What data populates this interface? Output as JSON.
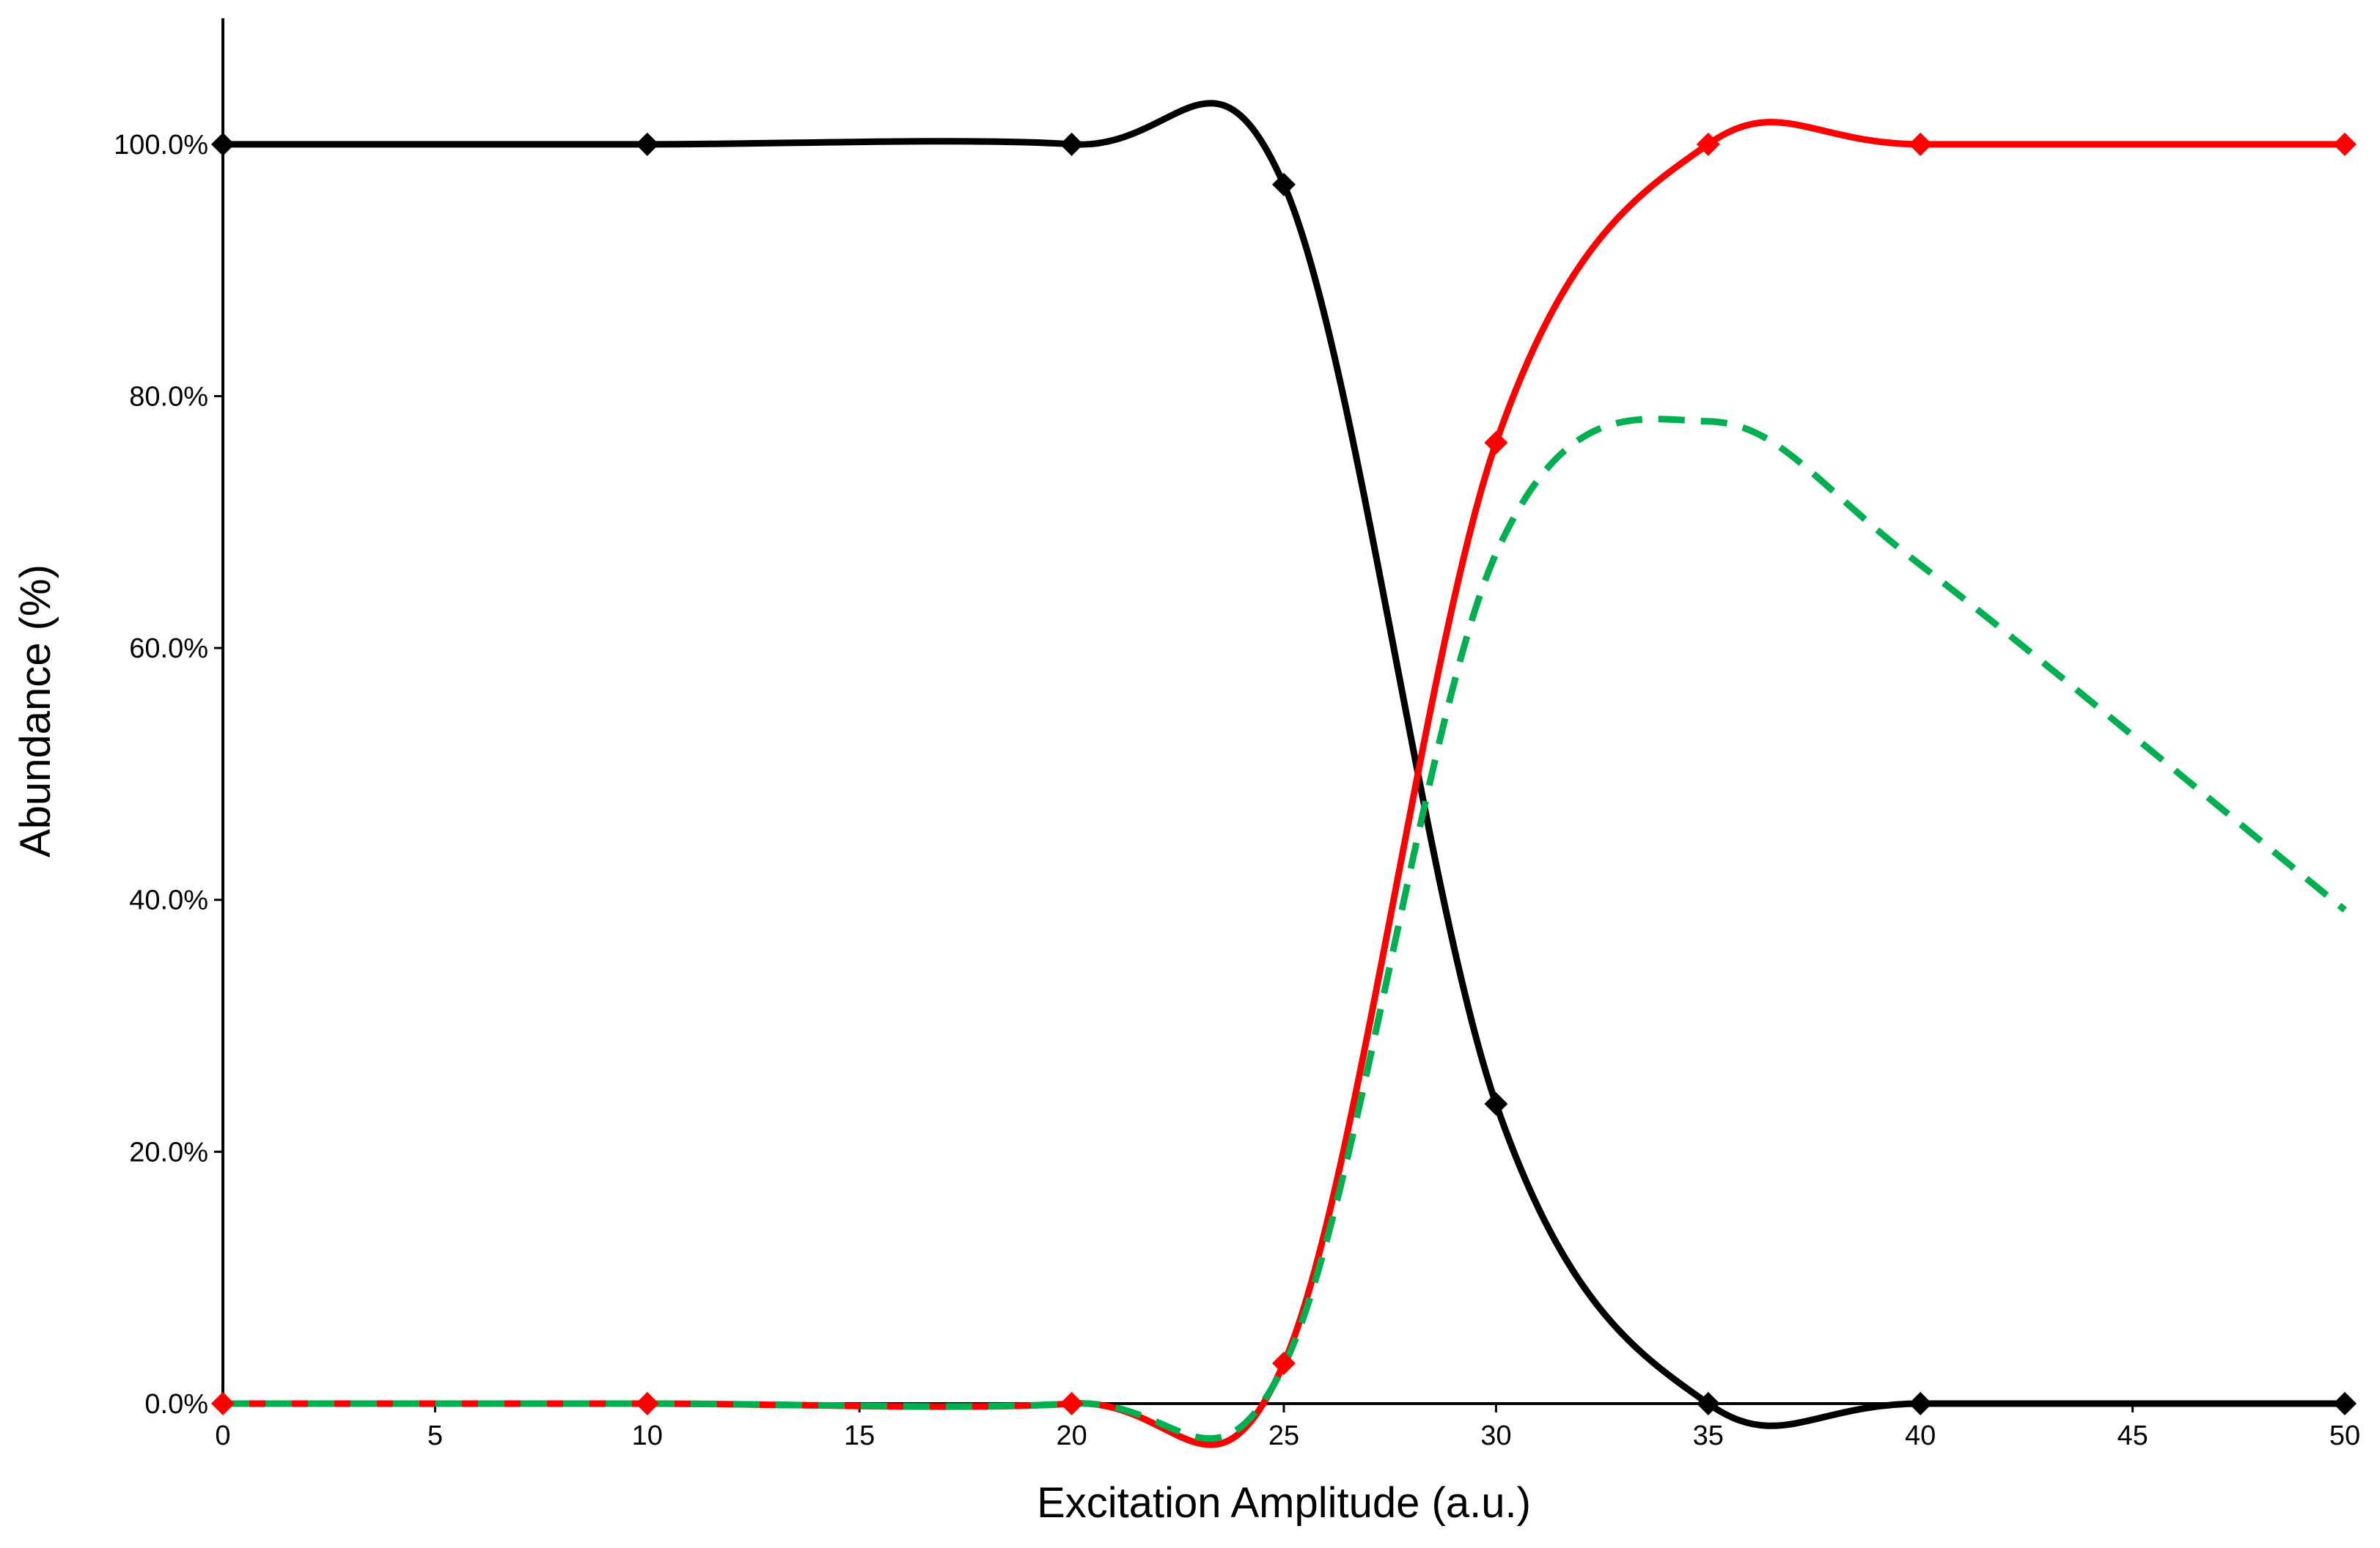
{
  "chart_data": {
    "type": "line",
    "x_label": "Excitation Amplitude (a.u.)",
    "y_label": "Abundance (%)",
    "x": [
      0,
      10,
      20,
      25,
      30,
      35,
      40,
      50
    ],
    "series": [
      {
        "name": "Black",
        "color": "#000000",
        "values": [
          100,
          100,
          100,
          96.8,
          23.8,
          0,
          0,
          0
        ],
        "markers": true,
        "dashed": false
      },
      {
        "name": "Red",
        "color": "#ff0000",
        "values": [
          0,
          0,
          0,
          3.2,
          76.3,
          100,
          100,
          100
        ],
        "markers": true,
        "dashed": false
      },
      {
        "name": "Green",
        "color": "#00b050",
        "values": [
          0,
          0,
          0,
          3,
          67.5,
          78,
          66.6,
          39.2
        ],
        "markers": false,
        "dashed": true
      }
    ],
    "xlim": [
      0,
      50
    ],
    "xticks": [
      0,
      5,
      10,
      15,
      20,
      25,
      30,
      35,
      40,
      45,
      50
    ],
    "ylim": [
      0,
      110
    ],
    "yticks": [
      {
        "value": 0,
        "label": "0.0%"
      },
      {
        "value": 20,
        "label": "20.0%"
      },
      {
        "value": 40,
        "label": "40.0%"
      },
      {
        "value": 60,
        "label": "60.0%"
      },
      {
        "value": 80,
        "label": "80.0%"
      },
      {
        "value": 100,
        "label": "100.0%"
      }
    ],
    "grid": false,
    "smooth": true
  }
}
